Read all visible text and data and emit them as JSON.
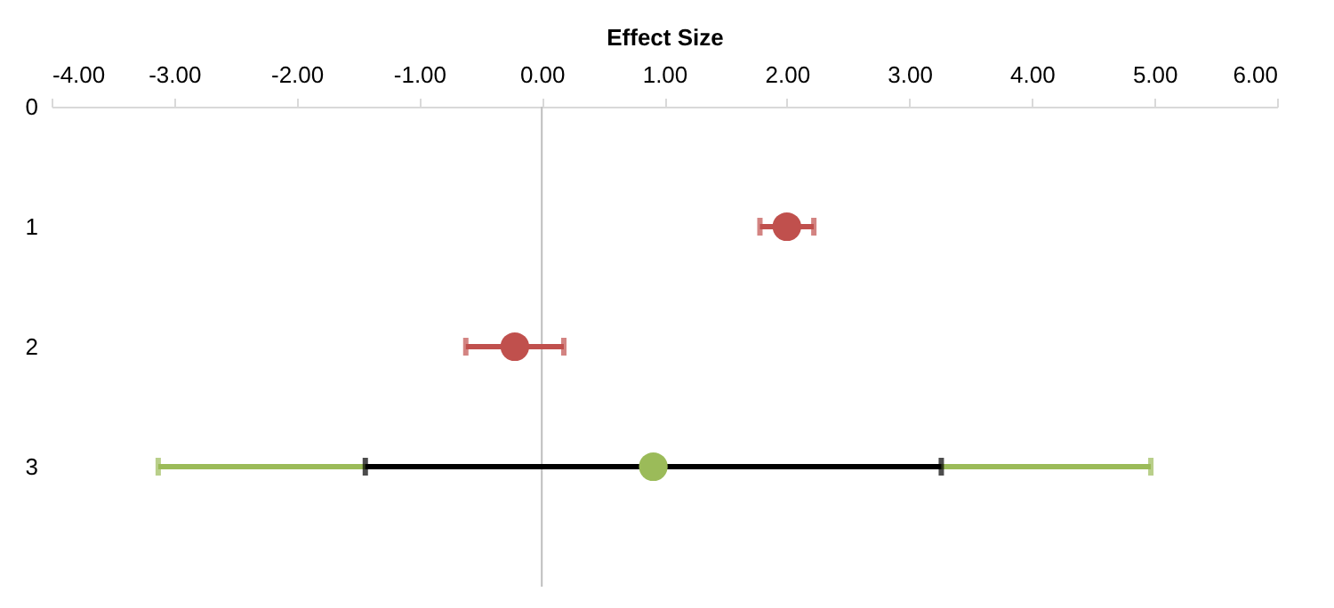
{
  "chart_data": {
    "type": "scatter",
    "xlabel": "Effect Size",
    "xlim": [
      -4,
      6
    ],
    "xticks": [
      {
        "value": -4,
        "label": "-4.00"
      },
      {
        "value": -3,
        "label": "-3.00"
      },
      {
        "value": -2,
        "label": "-2.00"
      },
      {
        "value": -1,
        "label": "-1.00"
      },
      {
        "value": 0,
        "label": "0.00"
      },
      {
        "value": 1,
        "label": "1.00"
      },
      {
        "value": 2,
        "label": "2.00"
      },
      {
        "value": 3,
        "label": "3.00"
      },
      {
        "value": 4,
        "label": "4.00"
      },
      {
        "value": 5,
        "label": "5.00"
      },
      {
        "value": 6,
        "label": "6.00"
      }
    ],
    "ylim": [
      4,
      0
    ],
    "yticks": [
      0,
      1,
      2,
      3
    ],
    "grid": false,
    "ref_lines": [
      {
        "axis": "x",
        "value": 0,
        "color": "#bfbfbf"
      }
    ],
    "series": [
      {
        "color": "#c0504d",
        "x": [
          2.0,
          -0.22
        ],
        "values": [
          1,
          2
        ],
        "xerrors": [
          0.22,
          0.4
        ],
        "marker": "circle"
      },
      {
        "color": "#9bbb59",
        "x": [
          0.91
        ],
        "values": [
          3
        ],
        "xerrors": [
          [
            -3.13,
            4.97
          ]
        ],
        "marker": "circle"
      },
      {
        "type": "line",
        "color": "#000000",
        "x": [
          -1.44,
          3.26
        ],
        "values": [
          3,
          3
        ],
        "marker": "square"
      }
    ]
  }
}
